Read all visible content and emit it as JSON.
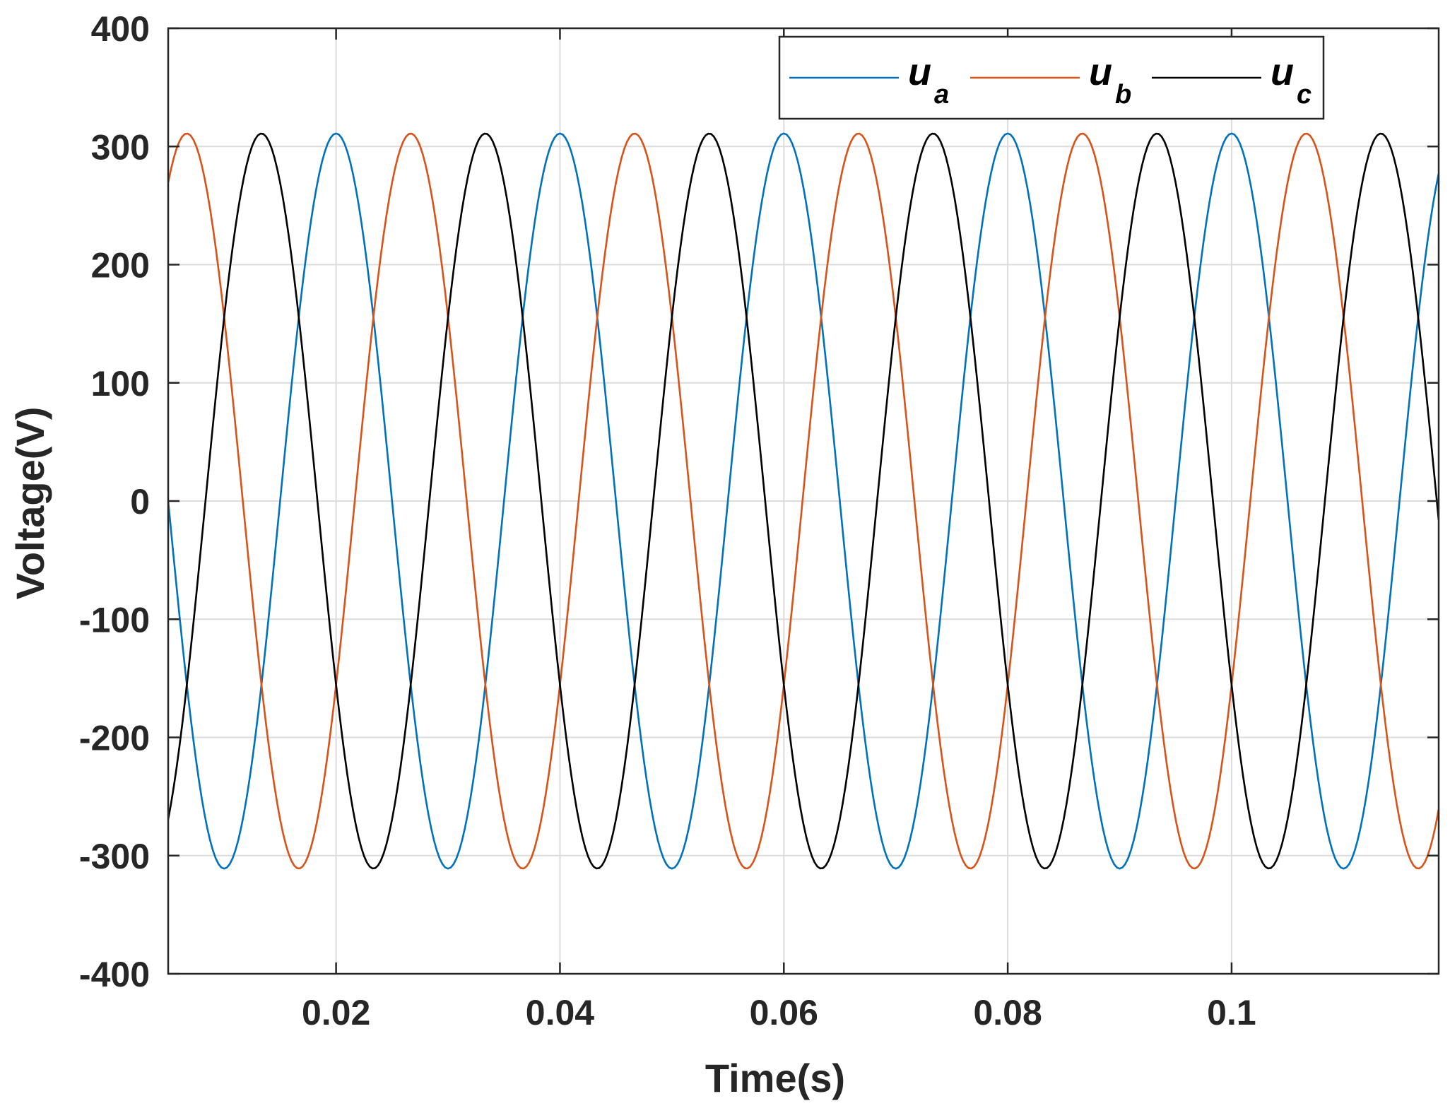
{
  "chart_data": {
    "type": "line",
    "title": "",
    "xlabel": "Time(s)",
    "ylabel": "Voltage(V)",
    "xlim": [
      0.005,
      0.1185
    ],
    "ylim": [
      -400,
      400
    ],
    "x_ticks": [
      0.02,
      0.04,
      0.06,
      0.08,
      0.1
    ],
    "x_tick_labels": [
      "0.02",
      "0.04",
      "0.06",
      "0.08",
      "0.1"
    ],
    "y_ticks": [
      -400,
      -300,
      -200,
      -100,
      0,
      100,
      200,
      300,
      400
    ],
    "y_tick_labels": [
      "-400",
      "-300",
      "-200",
      "-100",
      "0",
      "100",
      "200",
      "300",
      "400"
    ],
    "grid": true,
    "legend_position": "top-right",
    "sample_step": 0.00025,
    "series": [
      {
        "name": "u",
        "subscript": "a",
        "color": "#0072BD",
        "amplitude": 311,
        "frequency_hz": 50,
        "phase_deg": 90
      },
      {
        "name": "u",
        "subscript": "b",
        "color": "#D95319",
        "amplitude": 311,
        "frequency_hz": 50,
        "phase_deg": -30
      },
      {
        "name": "u",
        "subscript": "c",
        "color": "#000000",
        "amplitude": 311,
        "frequency_hz": 50,
        "phase_deg": 210
      }
    ]
  }
}
